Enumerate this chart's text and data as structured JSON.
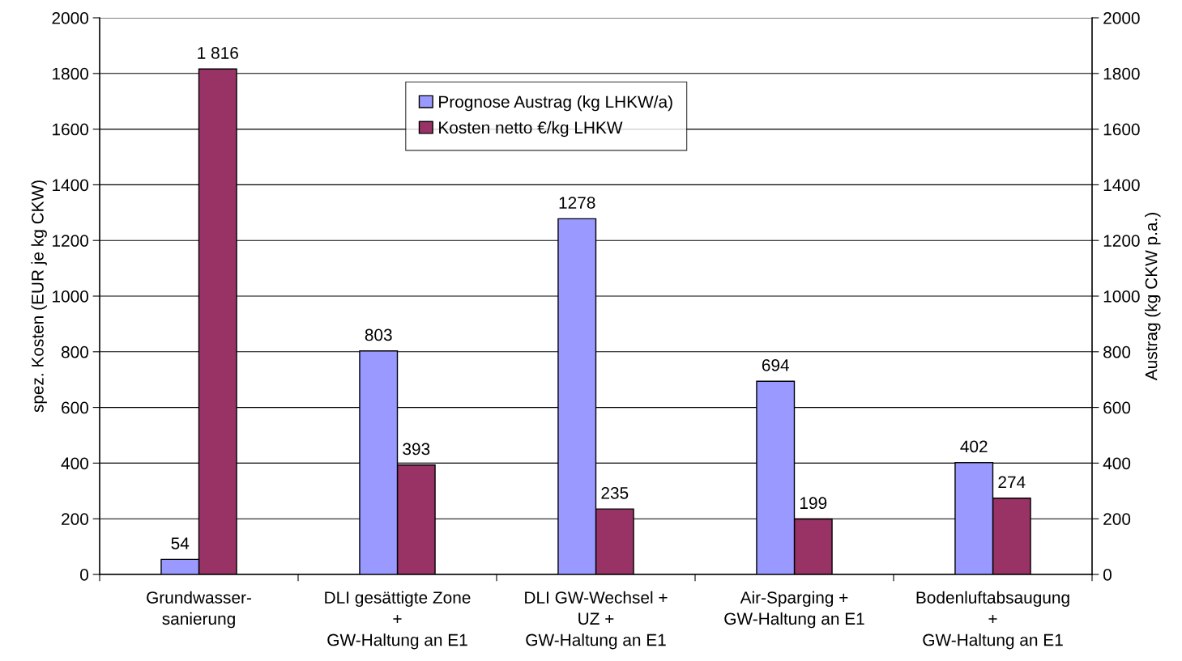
{
  "chart_data": {
    "type": "bar",
    "categories": [
      "Grundwasser-\nsanierung",
      "DLI gesättigte Zone\n+\nGW-Haltung an E1",
      "DLI GW-Wechsel +\nUZ +\nGW-Haltung an E1",
      "Air-Sparging +\nGW-Haltung an E1",
      "Bodenluftabsaugung\n+\nGW-Haltung an E1"
    ],
    "series": [
      {
        "name": "Prognose Austrag (kg LHKW/a)",
        "color": "#9999ff",
        "axis": "y2",
        "values": [
          54,
          803,
          1278,
          694,
          402
        ],
        "value_labels": [
          "54",
          "803",
          "1278",
          "694",
          "402"
        ]
      },
      {
        "name": "Kosten netto €/kg LHKW",
        "color": "#993366",
        "axis": "y",
        "values": [
          1816,
          393,
          235,
          199,
          274
        ],
        "value_labels": [
          "1 816",
          "393",
          "235",
          "199",
          "274"
        ]
      }
    ],
    "ylabel": "spez. Kosten (EUR je kg CKW)",
    "y2label": "Austrag (kg CKW p.a.)",
    "ylim": [
      0,
      2000
    ],
    "yticks": [
      0,
      200,
      400,
      600,
      800,
      1000,
      1200,
      1400,
      1600,
      1800,
      2000
    ],
    "y2lim": [
      0,
      2000
    ],
    "y2ticks": [
      0,
      200,
      400,
      600,
      800,
      1000,
      1200,
      1400,
      1600,
      1800,
      2000
    ],
    "grid": "y",
    "legend": "top"
  }
}
